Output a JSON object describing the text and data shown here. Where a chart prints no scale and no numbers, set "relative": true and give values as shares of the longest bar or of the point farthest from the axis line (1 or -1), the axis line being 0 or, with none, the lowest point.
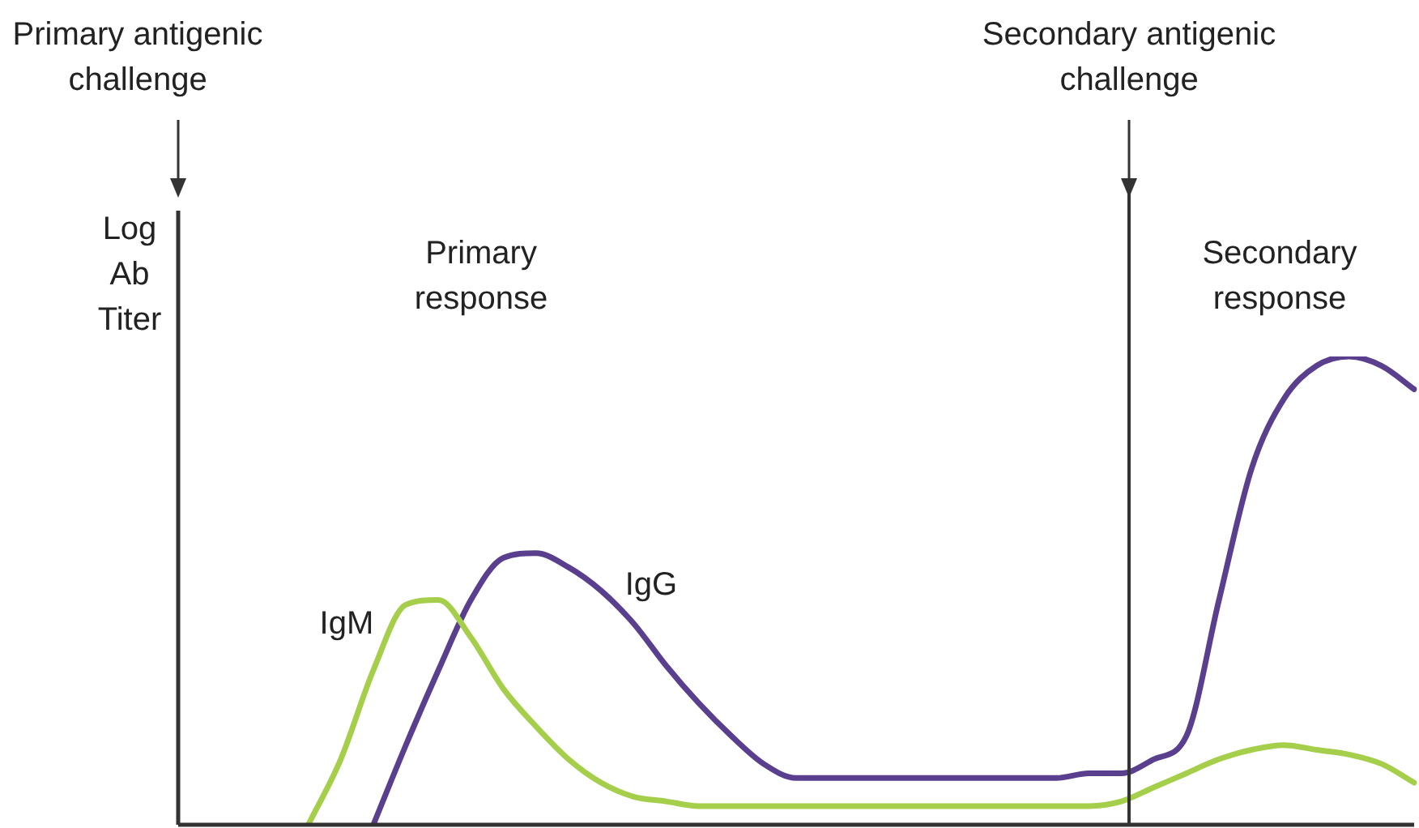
{
  "chart_data": {
    "type": "line",
    "relative": true,
    "ylabel": "Log Ab Titer",
    "categories": [
      null,
      null,
      null,
      null,
      null,
      null,
      null,
      null,
      null,
      null,
      null,
      null,
      null,
      null,
      null,
      null,
      null,
      null,
      null,
      null,
      null,
      null,
      null,
      null,
      null,
      null,
      null,
      null,
      null,
      null,
      null,
      null,
      null,
      null,
      null,
      null,
      null,
      null,
      null
    ],
    "series": [
      {
        "name": "IgM",
        "color": "#a5cf4a",
        "values": [
          null,
          null,
          null,
          null,
          0,
          0.14,
          0.33,
          0.47,
          0.48,
          0.4,
          0.29,
          0.21,
          0.14,
          0.09,
          0.06,
          0.05,
          0.04,
          0.04,
          0.04,
          0.04,
          0.04,
          0.04,
          0.04,
          0.04,
          0.04,
          0.04,
          0.04,
          0.04,
          0.04,
          0.05,
          0.08,
          0.11,
          0.14,
          0.16,
          0.17,
          0.16,
          0.15,
          0.13,
          0.09
        ]
      },
      {
        "name": "IgG",
        "color": "#5a3f8e",
        "values": [
          null,
          null,
          null,
          null,
          null,
          null,
          0,
          0.17,
          0.33,
          0.48,
          0.57,
          0.58,
          0.55,
          0.5,
          0.43,
          0.34,
          0.26,
          0.19,
          0.13,
          0.1,
          0.1,
          0.1,
          0.1,
          0.1,
          0.1,
          0.1,
          0.1,
          0.1,
          0.11,
          0.11,
          0.14,
          0.19,
          0.48,
          0.76,
          0.91,
          0.98,
          1,
          0.98,
          0.93
        ]
      }
    ],
    "annotations": [
      "Primary antigenic challenge",
      "Primary response",
      "Secondary response",
      "Secondary antigenic challenge"
    ],
    "legend": false,
    "grid": false,
    "marker": "none",
    "line_style": "solid"
  }
}
